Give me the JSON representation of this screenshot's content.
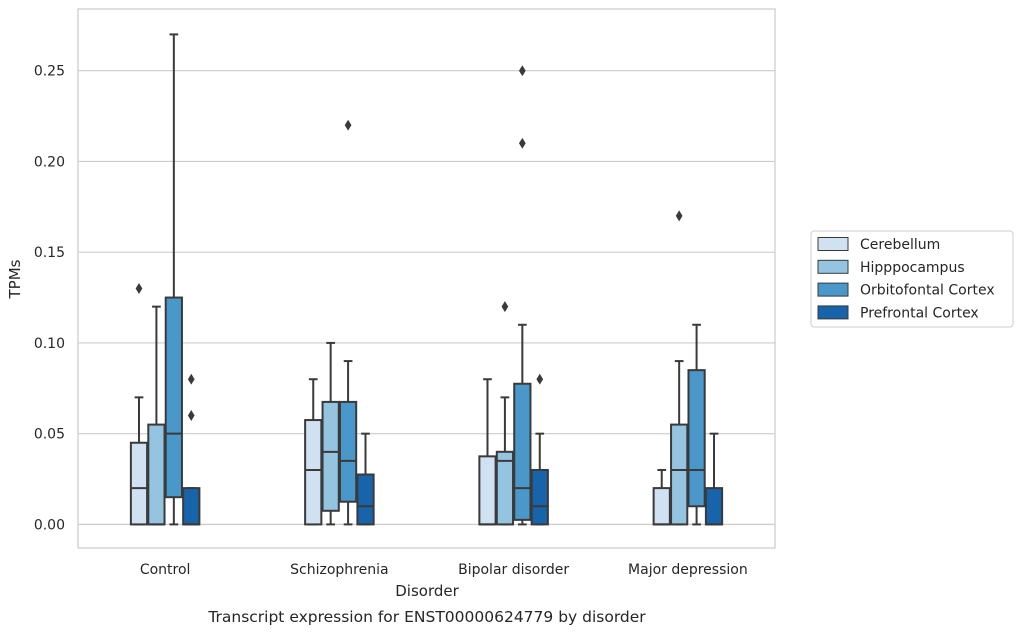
{
  "chart_data": {
    "type": "box",
    "title": "Transcript expression for ENST00000624779 by disorder",
    "xlabel": "Disorder",
    "ylabel": "TPMs",
    "ylim": [
      -0.013,
      0.284
    ],
    "yticks": [
      0.0,
      0.05,
      0.1,
      0.15,
      0.2,
      0.25
    ],
    "ytick_labels": [
      "0.00",
      "0.05",
      "0.10",
      "0.15",
      "0.20",
      "0.25"
    ],
    "grid": true,
    "legend_position": "right",
    "categories": [
      "Control",
      "Schizophrenia",
      "Bipolar disorder",
      "Major depression"
    ],
    "series": [
      {
        "name": "Cerebellum",
        "color": "#d0e1f2",
        "boxes": [
          {
            "whisker_low": 0.0,
            "q1": 0.0,
            "median": 0.02,
            "q3": 0.045,
            "whisker_high": 0.07,
            "outliers": [
              0.13
            ]
          },
          {
            "whisker_low": 0.0,
            "q1": 0.0,
            "median": 0.03,
            "q3": 0.0575,
            "whisker_high": 0.08,
            "outliers": []
          },
          {
            "whisker_low": 0.0,
            "q1": 0.0,
            "median": 0.0,
            "q3": 0.0375,
            "whisker_high": 0.08,
            "outliers": []
          },
          {
            "whisker_low": 0.0,
            "q1": 0.0,
            "median": 0.0,
            "q3": 0.02,
            "whisker_high": 0.03,
            "outliers": []
          }
        ]
      },
      {
        "name": "Hipppocampus",
        "color": "#94c4df",
        "boxes": [
          {
            "whisker_low": 0.0,
            "q1": 0.0,
            "median": 0.0,
            "q3": 0.055,
            "whisker_high": 0.12,
            "outliers": []
          },
          {
            "whisker_low": 0.0,
            "q1": 0.0075,
            "median": 0.04,
            "q3": 0.0675,
            "whisker_high": 0.1,
            "outliers": []
          },
          {
            "whisker_low": 0.0,
            "q1": 0.0,
            "median": 0.035,
            "q3": 0.04,
            "whisker_high": 0.07,
            "outliers": [
              0.12
            ]
          },
          {
            "whisker_low": 0.0,
            "q1": 0.0,
            "median": 0.03,
            "q3": 0.055,
            "whisker_high": 0.09,
            "outliers": [
              0.17
            ]
          }
        ]
      },
      {
        "name": "Orbitofontal Cortex",
        "color": "#4a98c9",
        "boxes": [
          {
            "whisker_low": 0.0,
            "q1": 0.015,
            "median": 0.05,
            "q3": 0.125,
            "whisker_high": 0.27,
            "outliers": []
          },
          {
            "whisker_low": 0.0,
            "q1": 0.0125,
            "median": 0.035,
            "q3": 0.0675,
            "whisker_high": 0.09,
            "outliers": [
              0.22
            ]
          },
          {
            "whisker_low": 0.0,
            "q1": 0.0025,
            "median": 0.02,
            "q3": 0.0775,
            "whisker_high": 0.11,
            "outliers": [
              0.21,
              0.25
            ]
          },
          {
            "whisker_low": 0.0,
            "q1": 0.01,
            "median": 0.03,
            "q3": 0.085,
            "whisker_high": 0.11,
            "outliers": []
          }
        ]
      },
      {
        "name": "Prefrontal Cortex",
        "color": "#1764ab",
        "boxes": [
          {
            "whisker_low": 0.0,
            "q1": 0.0,
            "median": 0.0,
            "q3": 0.02,
            "whisker_high": 0.02,
            "outliers": [
              0.06,
              0.08
            ]
          },
          {
            "whisker_low": 0.0,
            "q1": 0.0,
            "median": 0.01,
            "q3": 0.0275,
            "whisker_high": 0.05,
            "outliers": []
          },
          {
            "whisker_low": 0.0,
            "q1": 0.0,
            "median": 0.01,
            "q3": 0.03,
            "whisker_high": 0.05,
            "outliers": [
              0.08
            ]
          },
          {
            "whisker_low": 0.0,
            "q1": 0.0,
            "median": 0.0,
            "q3": 0.02,
            "whisker_high": 0.05,
            "outliers": []
          }
        ]
      }
    ]
  }
}
